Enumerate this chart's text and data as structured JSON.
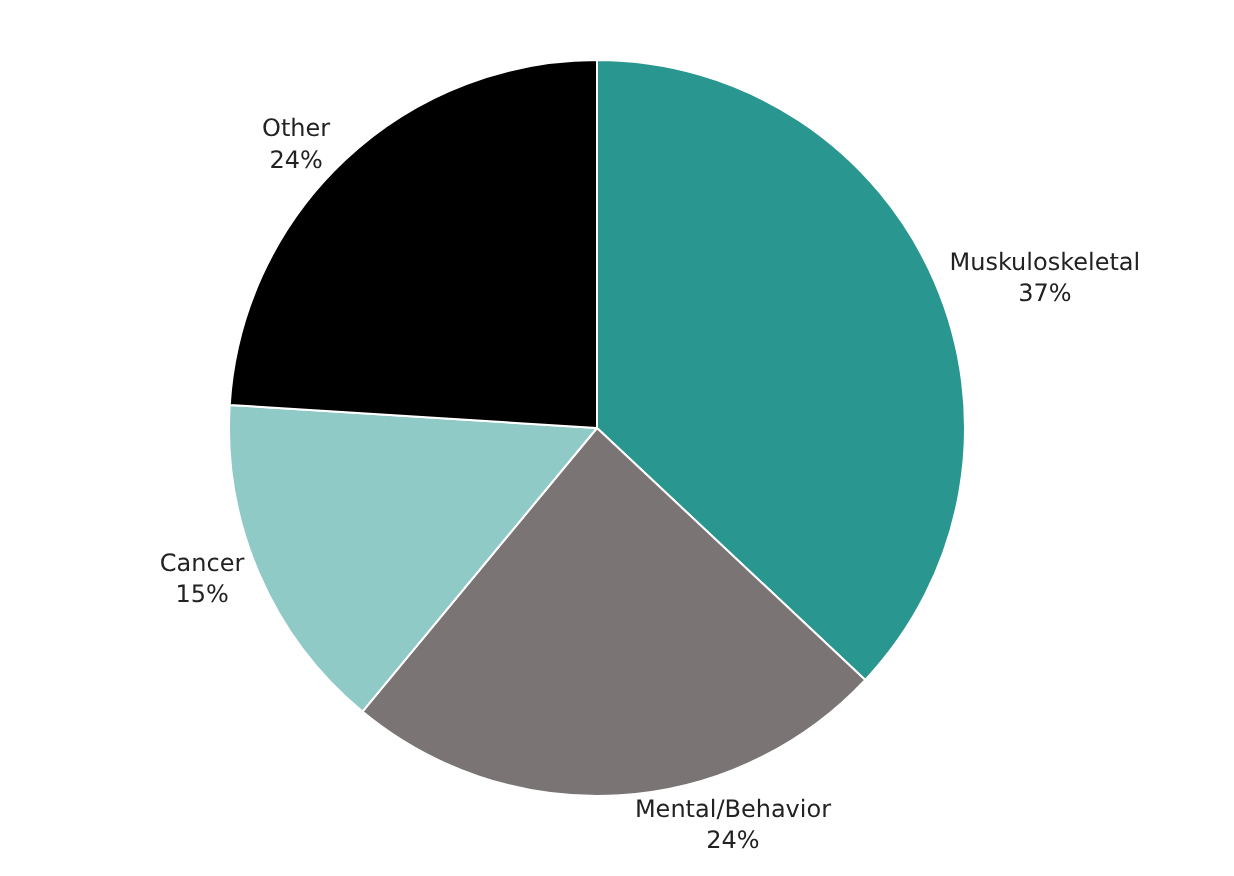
{
  "chart_data": {
    "type": "pie",
    "categories": [
      "Muskuloskeletal",
      "Mental/Behavior",
      "Cancer",
      "Other"
    ],
    "values": [
      37,
      24,
      15,
      24
    ],
    "value_labels": [
      "37%",
      "24%",
      "15%",
      "24%"
    ],
    "colors": [
      "#2a9690",
      "#7a7574",
      "#8fcac6",
      "#000000"
    ],
    "legend": false
  }
}
